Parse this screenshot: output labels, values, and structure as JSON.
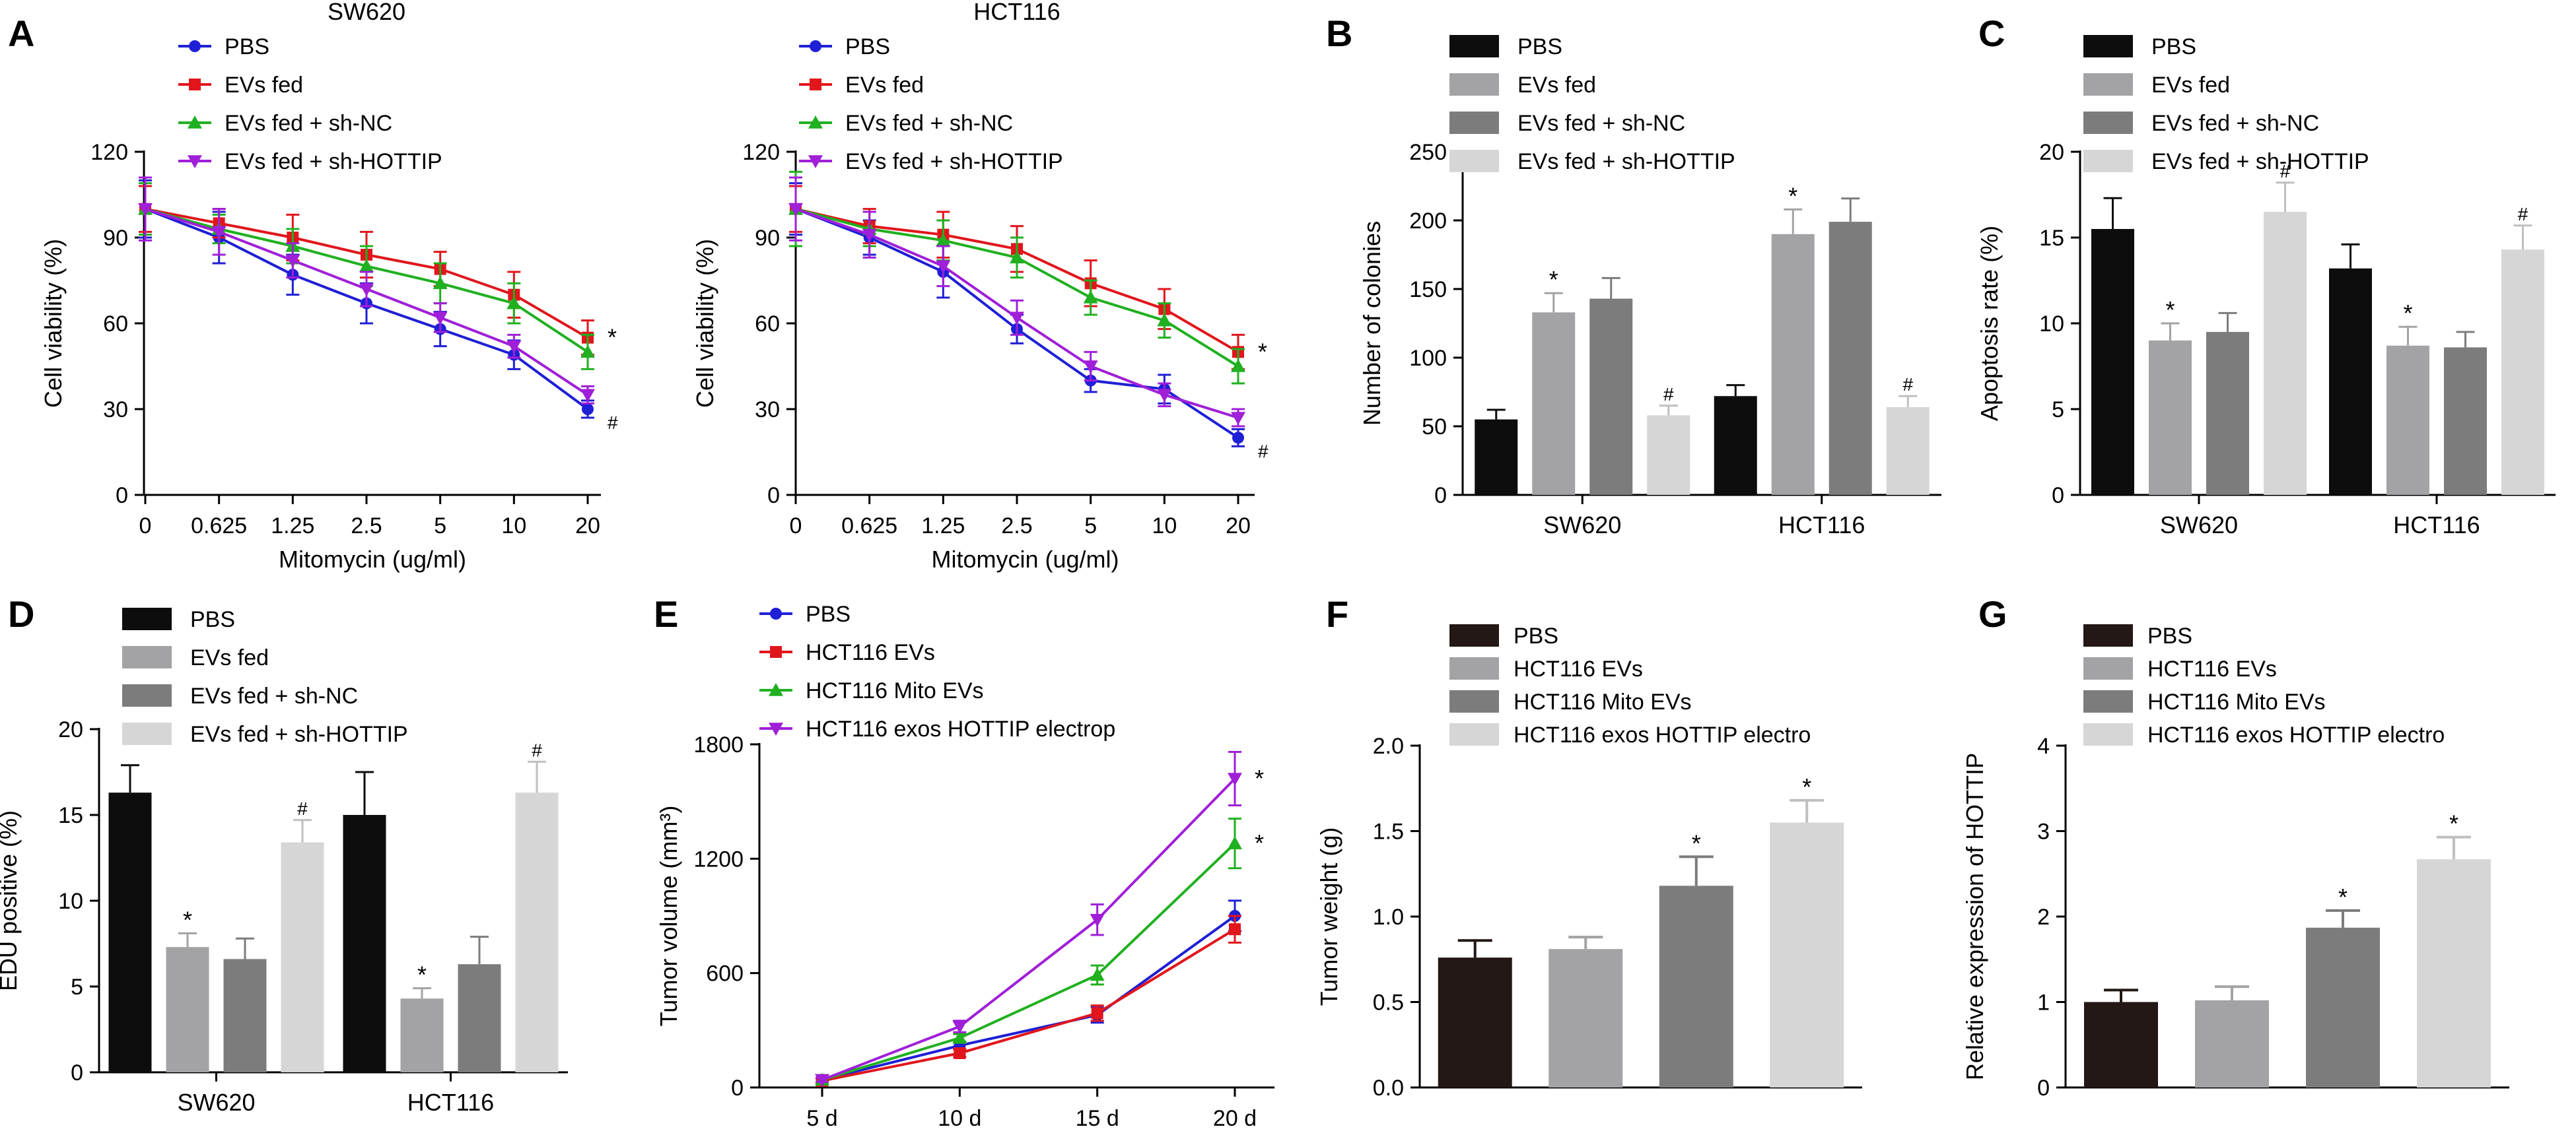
{
  "figure": {
    "colors": {
      "axis": "#000000",
      "blue": "#1f1fd6",
      "red": "#e0161c",
      "green": "#20b020",
      "purple": "#a01fd8",
      "black": "#0d0d0d",
      "gray1": "#a3a3a6",
      "gray2": "#7c7c7c",
      "gray3": "#d6d6d6"
    }
  },
  "chart_data": [
    {
      "id": "A1",
      "panel_letter": "A",
      "type": "line",
      "title": "SW620",
      "xlabel": "Mitomycin (ug/ml)",
      "ylabel": "Cell viability (%)",
      "categories": [
        "0",
        "0.625",
        "1.25",
        "2.5",
        "5",
        "10",
        "20"
      ],
      "ylim": [
        0,
        120
      ],
      "yticks": [
        "0",
        "30",
        "60",
        "90",
        "120"
      ],
      "series": [
        {
          "name": "PBS",
          "color": "#1f1fd6",
          "marker": "circle",
          "values": [
            100,
            90,
            77,
            67,
            58,
            49,
            30
          ],
          "errors": [
            10,
            9,
            7,
            7,
            6,
            5,
            3
          ]
        },
        {
          "name": "EVs fed",
          "color": "#e0161c",
          "marker": "square",
          "values": [
            100,
            95,
            90,
            84,
            79,
            70,
            55
          ],
          "errors": [
            8,
            5,
            8,
            8,
            6,
            8,
            6
          ]
        },
        {
          "name": "EVs fed + sh-NC",
          "color": "#20b020",
          "marker": "triangle",
          "values": [
            100,
            93,
            87,
            80,
            74,
            67,
            50
          ],
          "errors": [
            9,
            5,
            6,
            7,
            7,
            7,
            6
          ]
        },
        {
          "name": "EVs fed + sh-HOTTIP",
          "color": "#a01fd8",
          "marker": "triangle-down",
          "values": [
            100,
            92,
            82,
            72,
            62,
            52,
            35
          ],
          "errors": [
            11,
            8,
            6,
            6,
            5,
            4,
            3
          ]
        }
      ],
      "annotations": [
        {
          "text": "*",
          "series": 1
        },
        {
          "text": "#",
          "series": 0
        }
      ]
    },
    {
      "id": "A2",
      "type": "line",
      "title": "HCT116",
      "xlabel": "Mitomycin (ug/ml)",
      "ylabel": "Cell viability (%)",
      "categories": [
        "0",
        "0.625",
        "1.25",
        "2.5",
        "5",
        "10",
        "20"
      ],
      "ylim": [
        0,
        120
      ],
      "yticks": [
        "0",
        "30",
        "60",
        "90",
        "120"
      ],
      "series": [
        {
          "name": "PBS",
          "color": "#1f1fd6",
          "marker": "circle",
          "values": [
            100,
            90,
            78,
            58,
            40,
            37,
            20
          ],
          "errors": [
            9,
            6,
            9,
            5,
            4,
            5,
            3
          ]
        },
        {
          "name": "EVs fed",
          "color": "#e0161c",
          "marker": "square",
          "values": [
            100,
            94,
            91,
            86,
            74,
            65,
            50
          ],
          "errors": [
            8,
            6,
            8,
            8,
            8,
            7,
            6
          ]
        },
        {
          "name": "EVs fed + sh-NC",
          "color": "#20b020",
          "marker": "triangle",
          "values": [
            100,
            93,
            89,
            83,
            69,
            61,
            45
          ],
          "errors": [
            13,
            6,
            7,
            7,
            6,
            6,
            6
          ]
        },
        {
          "name": "EVs fed + sh-HOTTIP",
          "color": "#a01fd8",
          "marker": "triangle-down",
          "values": [
            100,
            91,
            80,
            62,
            45,
            35,
            27
          ],
          "errors": [
            11,
            8,
            7,
            6,
            5,
            4,
            3
          ]
        }
      ],
      "annotations": [
        {
          "text": "*",
          "series": 1
        },
        {
          "text": "#",
          "series": 0
        }
      ]
    },
    {
      "id": "B",
      "panel_letter": "B",
      "type": "bar",
      "title": "",
      "xlabel": "",
      "ylabel": "Number of colonies",
      "categories": [
        "SW620",
        "HCT116"
      ],
      "ylim": [
        0,
        250
      ],
      "yticks": [
        "0",
        "50",
        "100",
        "150",
        "200",
        "250"
      ],
      "series": [
        {
          "name": "PBS",
          "color": "#0d0d0d",
          "values": [
            55,
            72
          ],
          "errors": [
            7,
            8
          ],
          "marks": [
            "",
            ""
          ]
        },
        {
          "name": "EVs fed",
          "color": "#a3a3a6",
          "values": [
            133,
            190
          ],
          "errors": [
            14,
            18
          ],
          "marks": [
            "*",
            "*"
          ]
        },
        {
          "name": "EVs fed + sh-NC",
          "color": "#7c7c7c",
          "values": [
            143,
            199
          ],
          "errors": [
            15,
            17
          ],
          "marks": [
            "",
            ""
          ]
        },
        {
          "name": "EVs fed + sh-HOTTIP",
          "color": "#d6d6d6",
          "values": [
            58,
            64
          ],
          "errors": [
            7,
            8
          ],
          "marks": [
            "#",
            "#"
          ]
        }
      ]
    },
    {
      "id": "C",
      "panel_letter": "C",
      "type": "bar",
      "title": "",
      "xlabel": "",
      "ylabel": "Apoptosis rate (%)",
      "categories": [
        "SW620",
        "HCT116"
      ],
      "ylim": [
        0,
        20
      ],
      "yticks": [
        "0",
        "5",
        "10",
        "15",
        "20"
      ],
      "series": [
        {
          "name": "PBS",
          "color": "#0d0d0d",
          "values": [
            15.5,
            13.2
          ],
          "errors": [
            1.8,
            1.4
          ],
          "marks": [
            "",
            ""
          ]
        },
        {
          "name": "EVs fed",
          "color": "#a3a3a6",
          "values": [
            9.0,
            8.7
          ],
          "errors": [
            1.0,
            1.1
          ],
          "marks": [
            "*",
            "*"
          ]
        },
        {
          "name": "EVs fed + sh-NC",
          "color": "#7c7c7c",
          "values": [
            9.5,
            8.6
          ],
          "errors": [
            1.1,
            0.9
          ],
          "marks": [
            "",
            ""
          ]
        },
        {
          "name": "EVs fed + sh-HOTTIP",
          "color": "#d6d6d6",
          "values": [
            16.5,
            14.3
          ],
          "errors": [
            1.7,
            1.4
          ],
          "marks": [
            "#",
            "#"
          ]
        }
      ]
    },
    {
      "id": "D",
      "panel_letter": "D",
      "type": "bar",
      "title": "",
      "xlabel": "",
      "ylabel": "EDU positive (%)",
      "categories": [
        "SW620",
        "HCT116"
      ],
      "ylim": [
        0,
        20
      ],
      "yticks": [
        "0",
        "5",
        "10",
        "15",
        "20"
      ],
      "series": [
        {
          "name": "PBS",
          "color": "#0d0d0d",
          "values": [
            16.3,
            15.0
          ],
          "errors": [
            1.6,
            2.5
          ],
          "marks": [
            "",
            ""
          ]
        },
        {
          "name": "EVs fed",
          "color": "#a3a3a6",
          "values": [
            7.3,
            4.3
          ],
          "errors": [
            0.8,
            0.6
          ],
          "marks": [
            "*",
            "*"
          ]
        },
        {
          "name": "EVs fed + sh-NC",
          "color": "#7c7c7c",
          "values": [
            6.6,
            6.3
          ],
          "errors": [
            1.2,
            1.6
          ],
          "marks": [
            "",
            ""
          ]
        },
        {
          "name": "EVs fed + sh-HOTTIP",
          "color": "#d6d6d6",
          "values": [
            13.4,
            16.3
          ],
          "errors": [
            1.3,
            1.8
          ],
          "marks": [
            "#",
            "#"
          ]
        }
      ]
    },
    {
      "id": "E",
      "panel_letter": "E",
      "type": "line",
      "title": "",
      "xlabel": "",
      "ylabel": "Tumor volume (mm³)",
      "categories": [
        "5 d",
        "10 d",
        "15 d",
        "20 d"
      ],
      "ylim": [
        0,
        1800
      ],
      "yticks": [
        "0",
        "600",
        "1200",
        "1800"
      ],
      "series": [
        {
          "name": "PBS",
          "color": "#1f1fd6",
          "marker": "circle",
          "values": [
            40,
            220,
            380,
            900
          ],
          "errors": [
            10,
            20,
            40,
            80
          ]
        },
        {
          "name": "HCT116 EVs",
          "color": "#e0161c",
          "marker": "square",
          "values": [
            35,
            180,
            390,
            830
          ],
          "errors": [
            10,
            20,
            40,
            70
          ]
        },
        {
          "name": "HCT116 Mito EVs",
          "color": "#20b020",
          "marker": "triangle",
          "values": [
            40,
            260,
            590,
            1280
          ],
          "errors": [
            10,
            20,
            50,
            130
          ]
        },
        {
          "name": "HCT116 exos HOTTIP electrop",
          "color": "#a01fd8",
          "marker": "triangle-down",
          "values": [
            40,
            320,
            880,
            1620
          ],
          "errors": [
            10,
            30,
            80,
            140
          ]
        }
      ],
      "annotations": [
        {
          "text": "*",
          "series": 3
        },
        {
          "text": "*",
          "series": 2
        }
      ]
    },
    {
      "id": "F",
      "panel_letter": "F",
      "type": "bar",
      "title": "",
      "xlabel": "",
      "ylabel": "Tumor weight (g)",
      "categories": [
        "PBS",
        "HCT116 EVs",
        "HCT116 Mito EVs",
        "HCT116 exos HOTTIP electro"
      ],
      "ylim": [
        0,
        2.0
      ],
      "yticks": [
        "0.0",
        "0.5",
        "1.0",
        "1.5",
        "2.0"
      ],
      "colors": [
        "#231815",
        "#a3a3a6",
        "#7c7c7c",
        "#d6d6d6"
      ],
      "values": [
        0.76,
        0.81,
        1.18,
        1.55
      ],
      "errors": [
        0.1,
        0.07,
        0.17,
        0.13
      ],
      "marks": [
        "",
        "",
        "*",
        "*"
      ]
    },
    {
      "id": "G",
      "panel_letter": "G",
      "type": "bar",
      "title": "",
      "xlabel": "",
      "ylabel": "Relative expression of HOTTIP",
      "categories": [
        "PBS",
        "HCT116 EVs",
        "HCT116 Mito EVs",
        "HCT116 exos HOTTIP electro"
      ],
      "ylim": [
        0,
        4
      ],
      "yticks": [
        "0",
        "1",
        "2",
        "3",
        "4"
      ],
      "colors": [
        "#231815",
        "#a3a3a6",
        "#7c7c7c",
        "#d6d6d6"
      ],
      "values": [
        1.0,
        1.02,
        1.87,
        2.67
      ],
      "errors": [
        0.14,
        0.16,
        0.2,
        0.26
      ],
      "marks": [
        "",
        "",
        "*",
        "*"
      ]
    }
  ]
}
